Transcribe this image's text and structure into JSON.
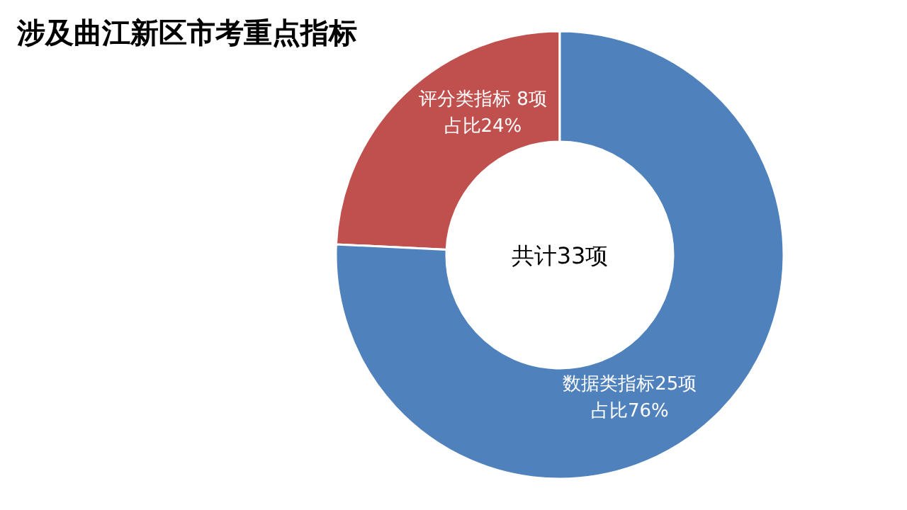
{
  "chart_data": {
    "type": "donut",
    "title": "涉及曲江新区市考重点指标",
    "categories": [
      "评分类指标 8项",
      "数据类指标25项"
    ],
    "values": [
      8,
      25
    ],
    "value_labels": [
      "占比24%",
      "占比76%"
    ],
    "colors": [
      "#c0504d",
      "#4f81bd"
    ],
    "annotations": [
      "共计33项"
    ]
  }
}
